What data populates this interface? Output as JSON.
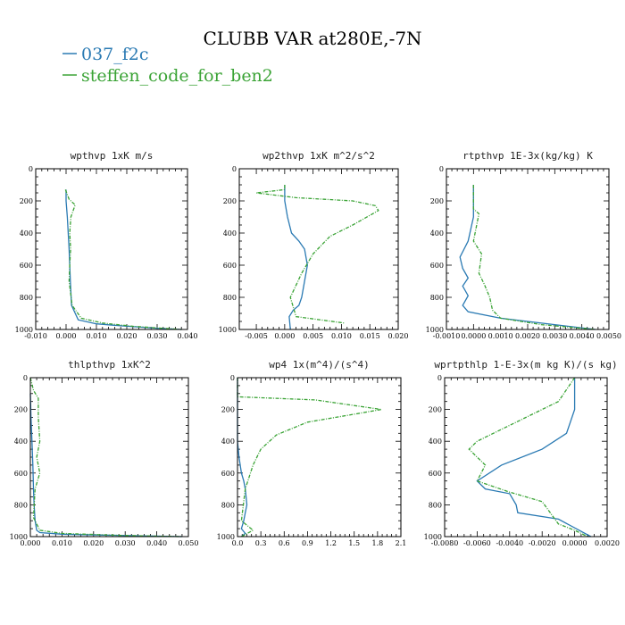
{
  "figure": {
    "title": "CLUBB VAR at280E,-7N"
  },
  "legend": [
    {
      "name": "037_f2c",
      "color": "#2a7ab3"
    },
    {
      "name": "steffen_code_for_ben2",
      "color": "#3aa335"
    }
  ],
  "chart_data": [
    {
      "type": "line",
      "title": "wpthvp   1xK m/s",
      "xlim": [
        -0.01,
        0.04
      ],
      "ylim": [
        1000,
        0
      ],
      "xticks": [
        -0.01,
        0.0,
        0.01,
        0.02,
        0.03,
        0.04
      ],
      "xtick_labels": [
        "-0.010",
        "0.000",
        "0.010",
        "0.020",
        "0.030",
        "0.040"
      ],
      "yticks": [
        0,
        200,
        400,
        600,
        800,
        1000
      ],
      "ytick_labels": [
        "0",
        "200",
        "400",
        "600",
        "800",
        "1000"
      ],
      "series": [
        {
          "name": "037_f2c",
          "x": [
            0.0,
            0.0,
            0.0004,
            0.0007,
            0.001,
            0.0012,
            0.0014,
            0.0018,
            0.004,
            0.01,
            0.02,
            0.03,
            0.038
          ],
          "y": [
            130,
            200,
            300,
            400,
            500,
            600,
            700,
            850,
            940,
            965,
            980,
            992,
            1000
          ]
        },
        {
          "name": "steffen_code_for_ben2",
          "x": [
            -0.0002,
            0.001,
            0.003,
            0.0016,
            0.0012,
            0.0015,
            0.0012,
            0.001,
            0.002,
            0.005,
            0.012,
            0.022,
            0.032,
            0.038
          ],
          "y": [
            130,
            190,
            225,
            300,
            400,
            500,
            600,
            700,
            850,
            930,
            960,
            980,
            993,
            1000
          ]
        }
      ]
    },
    {
      "type": "line",
      "title": "wp2thvp   1xK m^2/s^2",
      "xlim": [
        -0.008,
        0.02
      ],
      "ylim": [
        1000,
        0
      ],
      "xticks": [
        -0.005,
        0.0,
        0.005,
        0.01,
        0.015,
        0.02
      ],
      "xtick_labels": [
        "-0.005",
        "0.000",
        "0.005",
        "0.010",
        "0.015",
        "0.020"
      ],
      "yticks": [
        0,
        200,
        400,
        600,
        800,
        1000
      ],
      "ytick_labels": [
        "0",
        "200",
        "400",
        "600",
        "800",
        "1000"
      ],
      "series": [
        {
          "name": "037_f2c",
          "x": [
            0.0,
            0.0,
            0.0005,
            0.0012,
            0.0025,
            0.0035,
            0.004,
            0.0035,
            0.003,
            0.0025,
            0.0015,
            0.0008,
            0.001
          ],
          "y": [
            100,
            200,
            300,
            400,
            450,
            500,
            600,
            700,
            800,
            850,
            880,
            920,
            1000
          ]
        },
        {
          "name": "steffen_code_for_ben2",
          "x": [
            0.0,
            0.0,
            -0.005,
            0.002,
            0.012,
            0.016,
            0.0165,
            0.012,
            0.008,
            0.005,
            0.003,
            0.001,
            0.002,
            0.0105
          ],
          "y": [
            100,
            130,
            150,
            180,
            200,
            230,
            260,
            350,
            420,
            530,
            650,
            800,
            920,
            960
          ]
        }
      ]
    },
    {
      "type": "line",
      "title": "rtpthvp   1E-3x(kg/kg) K",
      "xlim": [
        -0.001,
        0.005
      ],
      "ylim": [
        1000,
        0
      ],
      "xticks": [
        -0.001,
        0.0,
        0.001,
        0.002,
        0.003,
        0.004,
        0.005
      ],
      "xtick_labels": [
        "-0.0010",
        "0.0000",
        "0.0010",
        "0.0020",
        "0.0030",
        "0.0040",
        "0.0050"
      ],
      "yticks": [
        0,
        200,
        400,
        600,
        800,
        1000
      ],
      "ytick_labels": [
        "0",
        "200",
        "400",
        "600",
        "800",
        "1000"
      ],
      "series": [
        {
          "name": "037_f2c",
          "x": [
            0.0,
            0.0,
            -0.0002,
            -0.0005,
            -0.0004,
            -0.0002,
            -0.0004,
            -0.0002,
            -0.0004,
            -0.0002,
            0.001,
            0.003,
            0.0045
          ],
          "y": [
            100,
            300,
            450,
            550,
            620,
            680,
            730,
            790,
            850,
            890,
            930,
            970,
            1000
          ]
        },
        {
          "name": "steffen_code_for_ben2",
          "x": [
            0.0,
            0.0,
            0.0002,
            0.0,
            0.0003,
            0.0002,
            0.0004,
            0.0006,
            0.0007,
            0.001,
            0.0025,
            0.0045
          ],
          "y": [
            100,
            250,
            280,
            450,
            530,
            650,
            720,
            800,
            880,
            930,
            970,
            1000
          ]
        }
      ]
    },
    {
      "type": "line",
      "title": "thlpthvp   1xK^2",
      "xlim": [
        0.0,
        0.05
      ],
      "ylim": [
        1000,
        0
      ],
      "xticks": [
        0.0,
        0.01,
        0.02,
        0.03,
        0.04,
        0.05
      ],
      "xtick_labels": [
        "0.000",
        "0.010",
        "0.020",
        "0.030",
        "0.040",
        "0.050"
      ],
      "yticks": [
        0,
        200,
        400,
        600,
        800,
        1000
      ],
      "ytick_labels": [
        "0",
        "200",
        "400",
        "600",
        "800",
        "1000"
      ],
      "series": [
        {
          "name": "037_f2c",
          "x": [
            0.0,
            0.0002,
            0.0005,
            0.0008,
            0.001,
            0.0012,
            0.0015,
            0.002,
            0.003,
            0.01,
            0.03,
            0.048
          ],
          "y": [
            100,
            250,
            400,
            550,
            700,
            800,
            900,
            960,
            975,
            985,
            993,
            1000
          ]
        },
        {
          "name": "steffen_code_for_ben2",
          "x": [
            0.0,
            0.001,
            0.0025,
            0.0025,
            0.003,
            0.002,
            0.003,
            0.0015,
            0.001,
            0.003,
            0.01,
            0.03,
            0.048
          ],
          "y": [
            0,
            80,
            130,
            250,
            400,
            500,
            600,
            700,
            880,
            960,
            980,
            993,
            1000
          ]
        }
      ]
    },
    {
      "type": "line",
      "title": "wp4   1x(m^4)/(s^4)",
      "xlim": [
        0.0,
        2.1
      ],
      "ylim": [
        1000,
        0
      ],
      "xticks": [
        0.0,
        0.3,
        0.6,
        0.9,
        1.2,
        1.5,
        1.8,
        2.1
      ],
      "xtick_labels": [
        "0.0",
        "0.3",
        "0.6",
        "0.9",
        "1.2",
        "1.5",
        "1.8",
        "2.1"
      ],
      "yticks": [
        0,
        200,
        400,
        600,
        800,
        1000
      ],
      "ytick_labels": [
        "0",
        "200",
        "400",
        "600",
        "800",
        "1000"
      ],
      "series": [
        {
          "name": "037_f2c",
          "x": [
            0.0,
            0.0,
            0.02,
            0.05,
            0.08,
            0.1,
            0.12,
            0.1,
            0.08,
            0.05,
            0.1,
            0.05
          ],
          "y": [
            0,
            400,
            500,
            600,
            650,
            700,
            800,
            850,
            900,
            950,
            980,
            1000
          ]
        },
        {
          "name": "steffen_code_for_ben2",
          "x": [
            0.0,
            0.0,
            1.0,
            1.85,
            1.5,
            0.9,
            0.5,
            0.3,
            0.2,
            0.1,
            0.05,
            0.2,
            0.05
          ],
          "y": [
            0,
            120,
            140,
            200,
            230,
            280,
            360,
            450,
            550,
            700,
            900,
            960,
            1000
          ]
        }
      ]
    },
    {
      "type": "line",
      "title": "wprtpthlp   1-E-3x(m kg K)/(s kg)",
      "xlim": [
        -0.008,
        0.002
      ],
      "ylim": [
        1000,
        0
      ],
      "xticks": [
        -0.008,
        -0.006,
        -0.004,
        -0.002,
        0.0,
        0.002
      ],
      "xtick_labels": [
        "-0.0080",
        "-0.0060",
        "-0.0040",
        "-0.0020",
        "0.0000",
        "0.0020"
      ],
      "yticks": [
        0,
        200,
        400,
        600,
        800,
        1000
      ],
      "ytick_labels": [
        "0",
        "200",
        "400",
        "600",
        "800",
        "1000"
      ],
      "series": [
        {
          "name": "037_f2c",
          "x": [
            0.0,
            0.0,
            -0.0005,
            -0.002,
            -0.0045,
            -0.006,
            -0.0055,
            -0.004,
            -0.0036,
            -0.0035,
            -0.001,
            0.001
          ],
          "y": [
            0,
            200,
            350,
            450,
            550,
            650,
            700,
            730,
            800,
            850,
            890,
            1000
          ]
        },
        {
          "name": "steffen_code_for_ben2",
          "x": [
            0.0,
            -0.001,
            -0.004,
            -0.006,
            -0.0065,
            -0.0055,
            -0.006,
            -0.004,
            -0.002,
            -0.0015,
            -0.001,
            0.0,
            0.0008
          ],
          "y": [
            0,
            150,
            300,
            400,
            450,
            550,
            650,
            720,
            780,
            850,
            920,
            960,
            1000
          ]
        }
      ]
    }
  ]
}
